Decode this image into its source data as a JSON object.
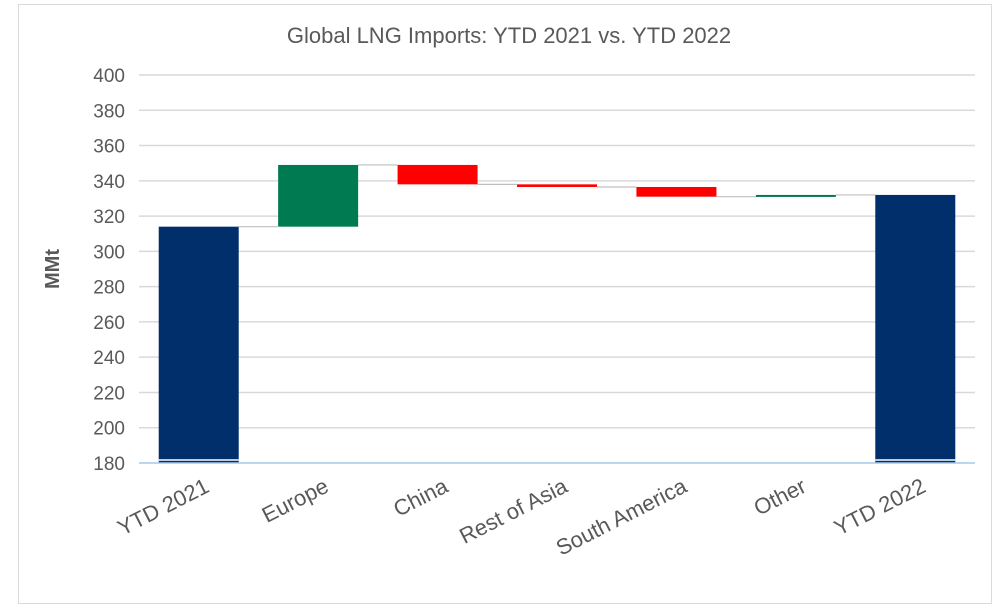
{
  "chart_data": {
    "type": "bar",
    "subtype": "waterfall",
    "title": "Global LNG Imports: YTD 2021 vs. YTD 2022",
    "xlabel": "",
    "ylabel": "MMt",
    "ylim": [
      180,
      400
    ],
    "y_ticks": [
      "180",
      "200",
      "220",
      "240",
      "260",
      "280",
      "300",
      "320",
      "340",
      "360",
      "380",
      "400"
    ],
    "grid": true,
    "legend": "none",
    "categories": [
      "YTD 2021",
      "Europe",
      "China",
      "Rest of Asia",
      "South America",
      "Other",
      "YTD 2022"
    ],
    "bars": [
      {
        "label": "YTD 2021",
        "kind": "total",
        "start": 180,
        "end": 314,
        "color": "#002f6c"
      },
      {
        "label": "Europe",
        "kind": "increase",
        "start": 314,
        "end": 349,
        "color": "#007a50"
      },
      {
        "label": "China",
        "kind": "decrease",
        "start": 349,
        "end": 338,
        "color": "#ff0000"
      },
      {
        "label": "Rest of Asia",
        "kind": "decrease",
        "start": 338,
        "end": 336.5,
        "color": "#ff0000"
      },
      {
        "label": "South America",
        "kind": "decrease",
        "start": 336.5,
        "end": 331,
        "color": "#ff0000"
      },
      {
        "label": "Other",
        "kind": "increase",
        "start": 331,
        "end": 332,
        "color": "#007a50"
      },
      {
        "label": "YTD 2022",
        "kind": "total",
        "start": 180,
        "end": 332,
        "color": "#002f6c"
      }
    ],
    "colors": {
      "total": "#002f6c",
      "increase": "#007a50",
      "decrease": "#ff0000",
      "grid": "#d9d9d9",
      "axis": "#a6c8e8",
      "text": "#595959"
    }
  }
}
